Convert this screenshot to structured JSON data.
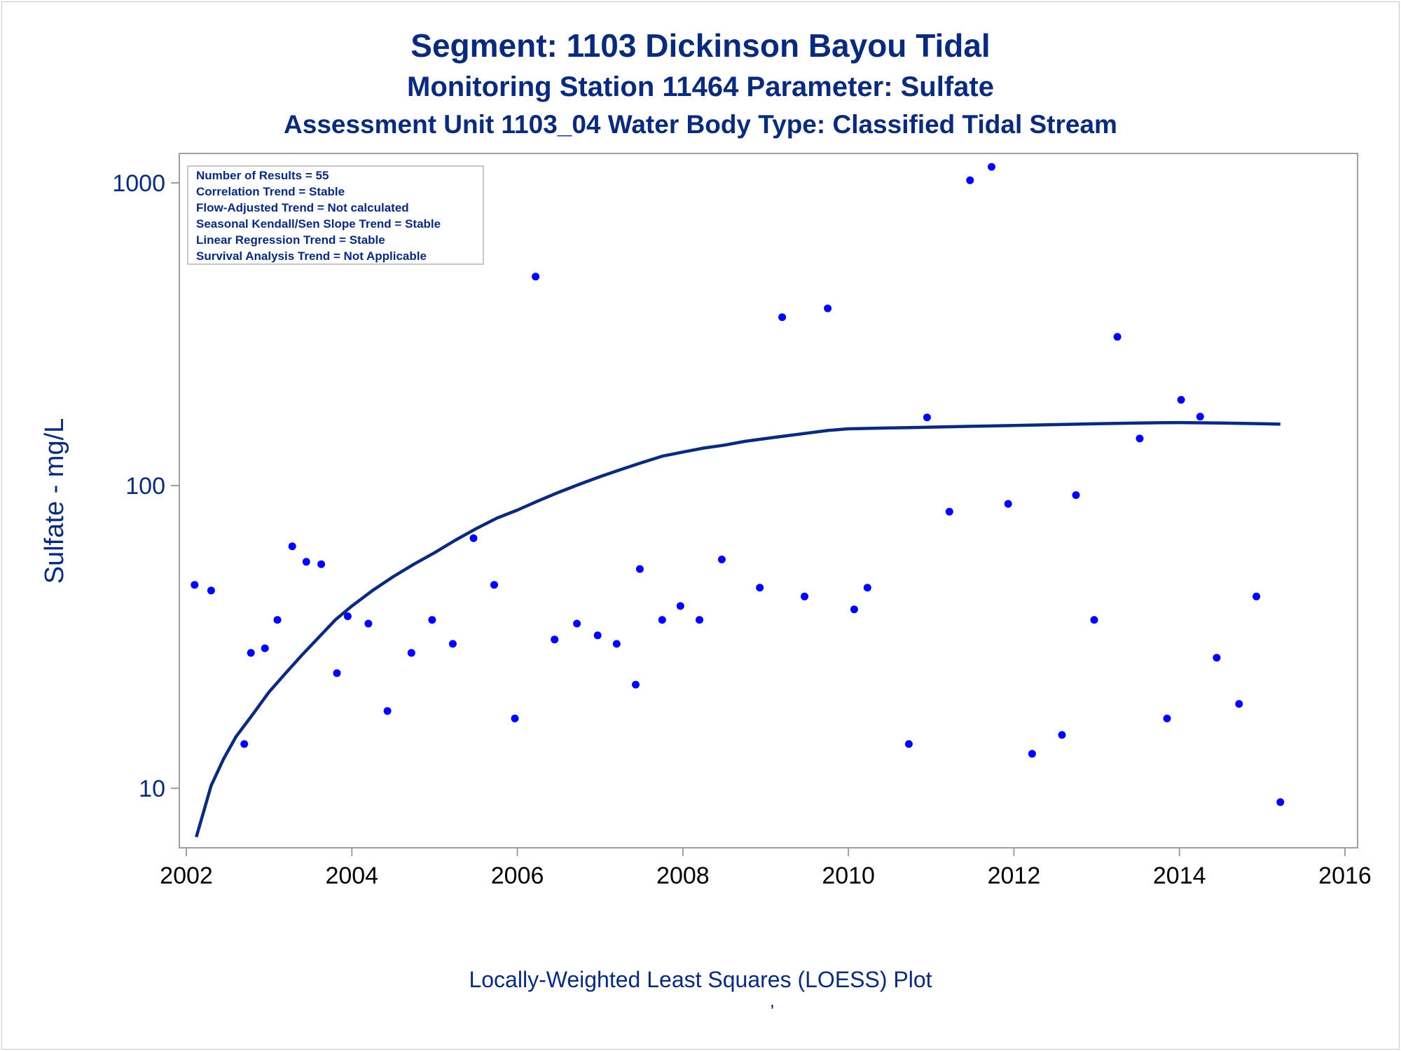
{
  "titles": {
    "title": "Segment: 1103  Dickinson Bayou Tidal",
    "subtitle": "Monitoring Station 11464 Parameter: Sulfate",
    "subtitle2": "Assessment Unit 1103_04   Water Body Type: Classified Tidal Stream",
    "footnote": "Locally-Weighted Least Squares (LOESS) Plot",
    "footnote_mark": "'"
  },
  "colors": {
    "text": "#0a2a7c",
    "points": "#0000ff",
    "line": "#0a2a7c",
    "frame": "#a0a0a0"
  },
  "chart_data": {
    "type": "scatter",
    "ylabel": "Sulfate - mg/L",
    "xlabel": "",
    "yscale": "log",
    "xlim": [
      2002,
      2016
    ],
    "ylim": [
      6.4,
      1300
    ],
    "xticks": [
      2002,
      2004,
      2006,
      2008,
      2010,
      2012,
      2014,
      2016
    ],
    "yticks": [
      10,
      100,
      1000
    ],
    "grid": false,
    "legend": "none",
    "stats_box": [
      "Number of Results = 55",
      "Correlation Trend = Stable",
      "Flow-Adjusted Trend = Not calculated",
      "Seasonal Kendall/Sen Slope Trend = Stable",
      "Linear Regression Trend = Stable",
      "Survival Analysis Trend = Not Applicable"
    ],
    "series": [
      {
        "kind": "points",
        "x": [
          2002.1,
          2002.3,
          2002.7,
          2002.78,
          2002.95,
          2003.1,
          2003.28,
          2003.45,
          2003.63,
          2003.82,
          2003.95,
          2004.2,
          2004.43,
          2004.72,
          2004.97,
          2005.22,
          2005.47,
          2005.72,
          2005.97,
          2006.22,
          2006.45,
          2006.72,
          2006.97,
          2007.2,
          2007.43,
          2007.48,
          2007.75,
          2007.97,
          2008.2,
          2008.47,
          2008.93,
          2009.2,
          2009.47,
          2009.75,
          2010.07,
          2010.23,
          2010.73,
          2010.95,
          2011.22,
          2011.47,
          2011.73,
          2011.93,
          2012.22,
          2012.58,
          2012.75,
          2012.97,
          2013.25,
          2013.52,
          2013.85,
          2014.02,
          2014.25,
          2014.45,
          2014.72,
          2014.93,
          2015.22
        ],
        "y": [
          47,
          45,
          14,
          28,
          29,
          36,
          63,
          56,
          55,
          24,
          37,
          35,
          18,
          28,
          36,
          30,
          67,
          47,
          17,
          490,
          31,
          35,
          32,
          30,
          22,
          53,
          36,
          40,
          36,
          57,
          46,
          360,
          43,
          385,
          39,
          46,
          14,
          168,
          82,
          1020,
          1130,
          87,
          13,
          15,
          93,
          36,
          310,
          143,
          17,
          192,
          169,
          27,
          19,
          43,
          9
        ]
      },
      {
        "kind": "loess",
        "x": [
          2002.12,
          2002.2,
          2002.3,
          2002.45,
          2002.6,
          2002.8,
          2003.0,
          2003.2,
          2003.4,
          2003.6,
          2003.8,
          2004.0,
          2004.25,
          2004.5,
          2004.75,
          2005.0,
          2005.25,
          2005.5,
          2005.75,
          2006.0,
          2006.25,
          2006.5,
          2006.75,
          2007.0,
          2007.25,
          2007.5,
          2007.75,
          2008.0,
          2008.25,
          2008.5,
          2008.75,
          2009.0,
          2009.25,
          2009.5,
          2009.75,
          2010.0,
          2010.25,
          2010.5,
          2010.75,
          2011.0,
          2011.5,
          2012.0,
          2012.5,
          2013.0,
          2013.5,
          2014.0,
          2014.5,
          2015.0,
          2015.22
        ],
        "y": [
          6.9,
          8.2,
          10.2,
          12.5,
          14.8,
          17.5,
          20.8,
          24.0,
          27.6,
          31.5,
          36.0,
          40.0,
          45.0,
          50.0,
          55.0,
          60.0,
          66.0,
          72.0,
          78.0,
          83.0,
          89.0,
          95.0,
          101.0,
          107.0,
          113.0,
          119.0,
          125.0,
          129.0,
          133.0,
          136.0,
          140.0,
          143.0,
          146.0,
          149.0,
          152.0,
          154.0,
          154.5,
          155.0,
          155.5,
          156.0,
          157.0,
          158.0,
          159.0,
          160.0,
          161.0,
          161.5,
          161.0,
          160.0,
          159.5
        ]
      }
    ]
  }
}
